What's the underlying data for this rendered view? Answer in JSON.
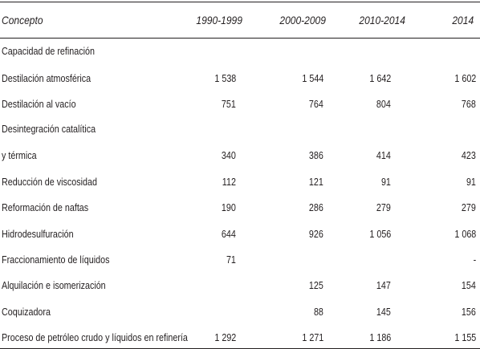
{
  "header": {
    "concepto": "Concepto",
    "p1": "1990-1999",
    "p2": "2000-2009",
    "p3": "2010-2014",
    "p4": "2014"
  },
  "rows": [
    {
      "label": "Capacidad de refinación",
      "v1": "",
      "v2": "",
      "v3": "",
      "v4": ""
    },
    {
      "label": "Destilación atmosférica",
      "v1": "1 538",
      "v2": "1 544",
      "v3": "1 642",
      "v4": "1 602"
    },
    {
      "label": "Destilación al vacío",
      "v1": "751",
      "v2": "764",
      "v3": "804",
      "v4": "768"
    },
    {
      "label": "Desintegración catalítica",
      "v1": "",
      "v2": "",
      "v3": "",
      "v4": ""
    },
    {
      "label": "y térmica",
      "v1": "340",
      "v2": "386",
      "v3": "414",
      "v4": "423"
    },
    {
      "label": "Reducción de viscosidad",
      "v1": "112",
      "v2": "121",
      "v3": "91",
      "v4": "91"
    },
    {
      "label": "Reformación de naftas",
      "v1": "190",
      "v2": "286",
      "v3": "279",
      "v4": "279"
    },
    {
      "label": "Hidrodesulfuración",
      "v1": "644",
      "v2": "926",
      "v3": "1 056",
      "v4": "1 068"
    },
    {
      "label": "Fraccionamiento de líquidos",
      "v1": "71",
      "v2": "",
      "v3": "",
      "v4": "-"
    },
    {
      "label": "Alquilación e isomerización",
      "v1": "",
      "v2": "125",
      "v3": "147",
      "v4": "154"
    },
    {
      "label": "Coquizadora",
      "v1": "",
      "v2": "88",
      "v3": "145",
      "v4": "156"
    },
    {
      "label": "Proceso de petróleo crudo y líquidos en refinería",
      "v1": "1 292",
      "v2": "1 271",
      "v3": "1 186",
      "v4": "1 155"
    }
  ]
}
